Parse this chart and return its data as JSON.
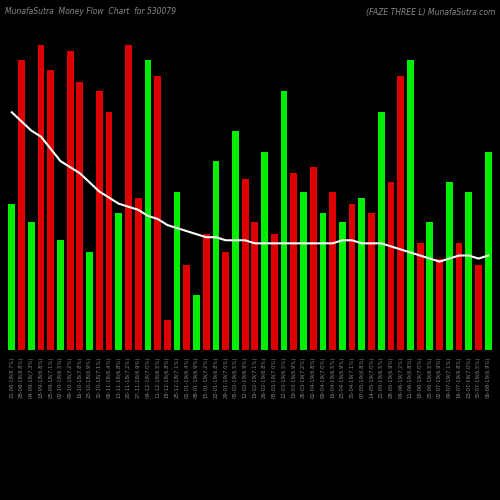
{
  "title_left": "MunafaSutra  Money Flow  Chart  for 530079",
  "title_right": "(FAZE THREE L) MunafaSutra.com",
  "bg_color": "#000000",
  "bar_colors": [
    "green",
    "red",
    "green",
    "red",
    "red",
    "green",
    "red",
    "red",
    "green",
    "red",
    "red",
    "green",
    "red",
    "red",
    "green",
    "red",
    "red",
    "green",
    "red",
    "green",
    "red",
    "green",
    "red",
    "green",
    "red",
    "red",
    "green",
    "red",
    "green",
    "red",
    "green",
    "red",
    "green",
    "red",
    "green",
    "red",
    "green",
    "red",
    "green",
    "red",
    "red",
    "green",
    "red",
    "green",
    "red",
    "green",
    "red",
    "green",
    "red",
    "green"
  ],
  "bar_heights": [
    0.48,
    0.95,
    0.42,
    1.0,
    0.92,
    0.36,
    0.98,
    0.88,
    0.32,
    0.85,
    0.78,
    0.45,
    1.0,
    0.5,
    0.95,
    0.9,
    0.1,
    0.52,
    0.28,
    0.18,
    0.38,
    0.62,
    0.32,
    0.72,
    0.56,
    0.42,
    0.65,
    0.38,
    0.85,
    0.58,
    0.52,
    0.6,
    0.45,
    0.52,
    0.42,
    0.48,
    0.5,
    0.45,
    0.78,
    0.55,
    0.9,
    0.95,
    0.35,
    0.42,
    0.3,
    0.55,
    0.35,
    0.52,
    0.28,
    0.65
  ],
  "line_values": [
    0.78,
    0.75,
    0.72,
    0.7,
    0.66,
    0.62,
    0.6,
    0.58,
    0.55,
    0.52,
    0.5,
    0.48,
    0.47,
    0.46,
    0.44,
    0.43,
    0.41,
    0.4,
    0.39,
    0.38,
    0.37,
    0.37,
    0.36,
    0.36,
    0.36,
    0.35,
    0.35,
    0.35,
    0.35,
    0.35,
    0.35,
    0.35,
    0.35,
    0.35,
    0.36,
    0.36,
    0.35,
    0.35,
    0.35,
    0.34,
    0.33,
    0.32,
    0.31,
    0.3,
    0.29,
    0.3,
    0.31,
    0.31,
    0.3,
    0.31
  ],
  "x_labels": [
    "21-08-18(8.7%)",
    "28-08-18(8.8%)",
    "04-09-18(7.3%)",
    "18-09-18(6.8%)",
    "25-09-18(7.1%)",
    "02-10-18(6.5%)",
    "09-10-18(7.2%)",
    "16-10-18(7.8%)",
    "23-10-18(6.9%)",
    "30-10-18(7.1%)",
    "06-11-18(6.4%)",
    "13-11-18(6.8%)",
    "20-11-18(7.2%)",
    "27-11-18(6.9%)",
    "04-12-18(7.0%)",
    "11-12-18(6.5%)",
    "18-12-18(6.8%)",
    "25-12-18(7.1%)",
    "01-01-19(6.4%)",
    "08-01-19(6.9%)",
    "15-01-19(7.2%)",
    "22-01-19(6.8%)",
    "29-01-19(7.0%)",
    "05-02-19(6.5%)",
    "12-02-19(6.9%)",
    "19-02-19(7.1%)",
    "26-02-19(6.8%)",
    "05-03-19(7.0%)",
    "12-03-19(6.5%)",
    "19-03-19(6.9%)",
    "26-03-19(7.2%)",
    "02-04-19(6.8%)",
    "09-04-19(7.0%)",
    "16-04-19(6.5%)",
    "23-04-19(6.9%)",
    "30-04-19(7.1%)",
    "07-05-19(6.8%)",
    "14-05-19(7.0%)",
    "21-05-19(6.5%)",
    "28-05-19(6.9%)",
    "04-06-19(7.2%)",
    "11-06-19(6.8%)",
    "18-06-19(7.0%)",
    "25-06-19(6.5%)",
    "02-07-19(6.9%)",
    "09-07-19(7.1%)",
    "16-07-19(6.8%)",
    "23-07-19(7.0%)",
    "30-07-19(6.5%)",
    "06-08-19(6.9%)"
  ],
  "line_color": "#ffffff",
  "title_color": "#888888",
  "label_color": "#888888",
  "green_color": "#00ee00",
  "red_color": "#dd0000",
  "ylim": [
    0,
    1.05
  ],
  "figsize": [
    5.0,
    5.0
  ],
  "dpi": 100
}
